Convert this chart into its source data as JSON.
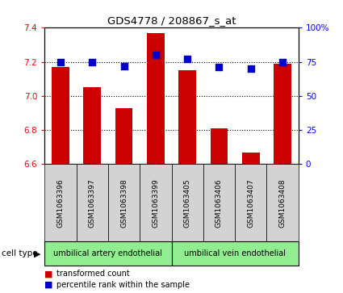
{
  "title": "GDS4778 / 208867_s_at",
  "samples": [
    "GSM1063396",
    "GSM1063397",
    "GSM1063398",
    "GSM1063399",
    "GSM1063405",
    "GSM1063406",
    "GSM1063407",
    "GSM1063408"
  ],
  "bar_values": [
    7.17,
    7.05,
    6.93,
    7.37,
    7.15,
    6.81,
    6.67,
    7.19
  ],
  "dot_values": [
    75,
    75,
    72,
    80,
    77,
    71,
    70,
    75
  ],
  "ylim_left": [
    6.6,
    7.4
  ],
  "ylim_right": [
    0,
    100
  ],
  "yticks_left": [
    6.6,
    6.8,
    7.0,
    7.2,
    7.4
  ],
  "yticks_right": [
    0,
    25,
    50,
    75,
    100
  ],
  "bar_color": "#cc0000",
  "dot_color": "#0000cc",
  "cell_type_label": "cell type",
  "legend_bar_label": "transformed count",
  "legend_dot_label": "percentile rank within the sample",
  "xlabel_area_color": "#d3d3d3",
  "green_color": "#90ee90",
  "bar_width": 0.55,
  "dot_size": 30,
  "groups": [
    {
      "start": 0,
      "end": 3,
      "label": "umbilical artery endothelial"
    },
    {
      "start": 4,
      "end": 7,
      "label": "umbilical vein endothelial"
    }
  ]
}
